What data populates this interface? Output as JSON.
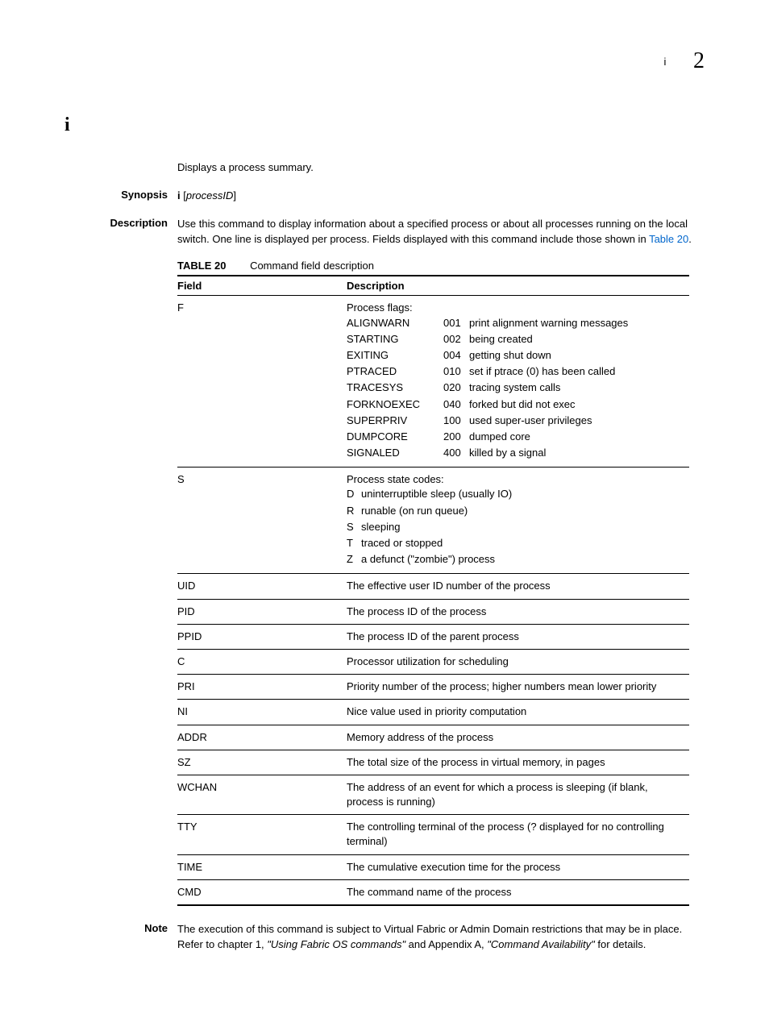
{
  "header": {
    "section": "i",
    "chapter": "2"
  },
  "command": {
    "title": "i"
  },
  "summary": "Displays a process summary.",
  "synopsis": {
    "label": "Synopsis",
    "cmd": "i",
    "arg_open": " [",
    "arg": "processID",
    "arg_close": "]"
  },
  "description": {
    "label": "Description",
    "text_a": "Use this command to display information about a specified process or about all processes running on the local switch. One line is displayed per process. Fields displayed with this command include those shown in ",
    "link": "Table 20",
    "text_b": "."
  },
  "table": {
    "label": "TABLE 20",
    "title": "Command field description",
    "headers": {
      "field": "Field",
      "description": "Description"
    },
    "rows": [
      {
        "field": "F",
        "type": "flags",
        "lead": "Process flags:",
        "items": [
          {
            "name": "ALIGNWARN",
            "code": "001",
            "desc": "print alignment warning messages"
          },
          {
            "name": "STARTING",
            "code": "002",
            "desc": "being created"
          },
          {
            "name": "EXITING",
            "code": "004",
            "desc": "getting shut down"
          },
          {
            "name": "PTRACED",
            "code": "010",
            "desc": "set if ptrace (0) has been called"
          },
          {
            "name": "TRACESYS",
            "code": "020",
            "desc": "tracing system calls"
          },
          {
            "name": "FORKNOEXEC",
            "code": "040",
            "desc": "forked but did not exec"
          },
          {
            "name": "SUPERPRIV",
            "code": "100",
            "desc": "used super-user privileges"
          },
          {
            "name": "DUMPCORE",
            "code": "200",
            "desc": "dumped core"
          },
          {
            "name": "SIGNALED",
            "code": "400",
            "desc": "killed by a signal"
          }
        ]
      },
      {
        "field": "S",
        "type": "states",
        "lead": "Process state codes:",
        "items": [
          {
            "code": "D",
            "desc": "uninterruptible sleep (usually IO)"
          },
          {
            "code": "R",
            "desc": "runable (on run queue)"
          },
          {
            "code": "S",
            "desc": "sleeping"
          },
          {
            "code": "T",
            "desc": "traced or stopped"
          },
          {
            "code": "Z",
            "desc": "a defunct (\"zombie\") process"
          }
        ]
      },
      {
        "field": "UID",
        "type": "simple",
        "desc": "The effective user ID number of the process"
      },
      {
        "field": "PID",
        "type": "simple",
        "desc": "The process ID of the process"
      },
      {
        "field": "PPID",
        "type": "simple",
        "desc": "The process ID of the parent process"
      },
      {
        "field": "C",
        "type": "simple",
        "desc": "Processor utilization for scheduling"
      },
      {
        "field": "PRI",
        "type": "simple",
        "desc": "Priority number of the process; higher numbers mean lower priority"
      },
      {
        "field": "NI",
        "type": "simple",
        "desc": "Nice value used in priority computation"
      },
      {
        "field": "ADDR",
        "type": "simple",
        "desc": "Memory address of the process"
      },
      {
        "field": "SZ",
        "type": "simple",
        "desc": "The total size of the process in virtual memory, in pages"
      },
      {
        "field": "WCHAN",
        "type": "simple",
        "desc": "The address of an event for which a process is sleeping (if blank, process is running)"
      },
      {
        "field": "TTY",
        "type": "simple",
        "desc": "The controlling terminal of the process (? displayed for no controlling terminal)"
      },
      {
        "field": "TIME",
        "type": "simple",
        "desc": "The cumulative execution time for the process"
      },
      {
        "field": "CMD",
        "type": "simple",
        "desc": "The command name of the process"
      }
    ]
  },
  "note": {
    "label": "Note",
    "text_a": "The execution of this command is subject to Virtual Fabric or Admin Domain restrictions that may be in place. Refer to chapter 1, ",
    "italic_a": "\"Using Fabric OS commands\"",
    "text_b": " and Appendix A, ",
    "italic_b": "\"Command Availability\"",
    "text_c": " for details."
  }
}
